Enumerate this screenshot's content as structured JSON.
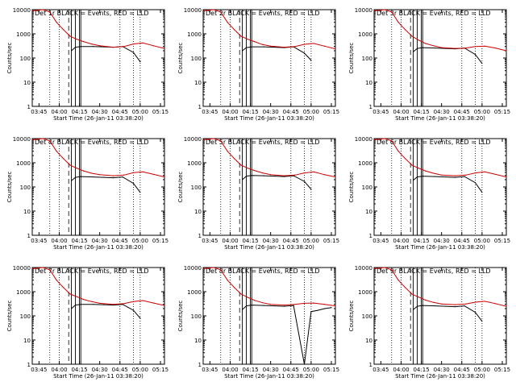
{
  "x_ticks": [
    "03:45",
    "04:00",
    "04:15",
    "04:30",
    "04:45",
    "05:00",
    "05:15"
  ],
  "y_ticks": [
    "1",
    "10",
    "100",
    "1000",
    "10000"
  ],
  "ylabel": "Counts/sec",
  "xlabel": "Start Time (26-Jan-11 03:38:20)",
  "colors": {
    "events": "#000000",
    "lld": "#cc0000",
    "axes": "#000000"
  },
  "chart_data": [
    {
      "type": "line",
      "title": "Det 1r BLACK = Events, RED = LLD",
      "xlabel": "Start Time (26-Jan-11 03:38:20)",
      "ylabel": "Counts/sec",
      "yscale": "log",
      "ylim": [
        1,
        10000
      ],
      "xlim": [
        "03:40",
        "05:18"
      ],
      "series": [
        {
          "name": "Events",
          "x": [
            "03:56",
            "04:07",
            "04:09",
            "04:12",
            "04:16",
            "04:25",
            "04:33",
            "04:40",
            "04:47",
            "04:55",
            "05:00"
          ],
          "values": [
            null,
            null,
            200,
            280,
            300,
            300,
            290,
            280,
            300,
            170,
            70
          ]
        },
        {
          "name": "LLD",
          "x": [
            "03:40",
            "03:48",
            "03:53",
            "03:58",
            "04:03",
            "04:08",
            "04:13",
            "04:18",
            "04:24",
            "04:30",
            "04:40",
            "04:48",
            "04:55",
            "05:02",
            "05:10",
            "05:18"
          ],
          "values": [
            9000,
            10000,
            8000,
            3000,
            1500,
            800,
            600,
            480,
            380,
            320,
            280,
            300,
            380,
            420,
            320,
            250
          ]
        }
      ]
    },
    {
      "type": "line",
      "title": "Det 2r BLACK = Events, RED = LLD",
      "xlabel": "Start Time (26-Jan-11 03:38:20)",
      "ylabel": "Counts/sec",
      "yscale": "log",
      "ylim": [
        1,
        10000
      ],
      "xlim": [
        "03:40",
        "05:18"
      ],
      "series": [
        {
          "name": "Events",
          "x": [
            "04:09",
            "04:12",
            "04:16",
            "04:25",
            "04:33",
            "04:40",
            "04:47",
            "04:55",
            "05:00"
          ],
          "values": [
            200,
            270,
            290,
            290,
            280,
            270,
            290,
            160,
            80
          ]
        },
        {
          "name": "LLD",
          "x": [
            "03:40",
            "03:48",
            "03:53",
            "03:58",
            "04:03",
            "04:08",
            "04:13",
            "04:18",
            "04:24",
            "04:30",
            "04:40",
            "04:48",
            "04:55",
            "05:02",
            "05:10",
            "05:18"
          ],
          "values": [
            9000,
            10000,
            8000,
            3000,
            1500,
            800,
            600,
            480,
            360,
            310,
            280,
            300,
            370,
            400,
            310,
            240
          ]
        }
      ]
    },
    {
      "type": "line",
      "title": "Det 3r BLACK = Events, RED = LLD",
      "xlabel": "Start Time (26-Jan-11 03:38:20)",
      "ylabel": "Counts/sec",
      "yscale": "log",
      "ylim": [
        1,
        10000
      ],
      "xlim": [
        "03:40",
        "05:18"
      ],
      "series": [
        {
          "name": "Events",
          "x": [
            "04:09",
            "04:12",
            "04:16",
            "04:25",
            "04:33",
            "04:40",
            "04:47",
            "04:55",
            "05:00"
          ],
          "values": [
            180,
            250,
            270,
            260,
            250,
            240,
            260,
            140,
            60
          ]
        },
        {
          "name": "LLD",
          "x": [
            "03:40",
            "03:48",
            "03:53",
            "03:58",
            "04:03",
            "04:08",
            "04:13",
            "04:18",
            "04:24",
            "04:30",
            "04:40",
            "04:48",
            "04:55",
            "05:02",
            "05:10",
            "05:18"
          ],
          "values": [
            9000,
            10000,
            8000,
            3000,
            1500,
            800,
            550,
            400,
            320,
            270,
            250,
            260,
            300,
            310,
            260,
            200
          ]
        }
      ]
    },
    {
      "type": "line",
      "title": "Det 4r BLACK = Events, RED = LLD",
      "xlabel": "Start Time (26-Jan-11 03:38:20)",
      "ylabel": "Counts/sec",
      "yscale": "log",
      "ylim": [
        1,
        10000
      ],
      "xlim": [
        "03:40",
        "05:18"
      ],
      "series": [
        {
          "name": "Events",
          "x": [
            "04:09",
            "04:12",
            "04:16",
            "04:25",
            "04:33",
            "04:40",
            "04:47",
            "04:55",
            "05:00"
          ],
          "values": [
            180,
            250,
            270,
            260,
            250,
            240,
            260,
            140,
            60
          ]
        },
        {
          "name": "LLD",
          "x": [
            "03:40",
            "03:48",
            "03:53",
            "03:58",
            "04:03",
            "04:08",
            "04:13",
            "04:18",
            "04:24",
            "04:30",
            "04:40",
            "04:48",
            "04:55",
            "05:02",
            "05:10",
            "05:18"
          ],
          "values": [
            9000,
            10000,
            8000,
            3000,
            1500,
            800,
            600,
            460,
            370,
            320,
            290,
            310,
            390,
            420,
            330,
            260
          ]
        }
      ]
    },
    {
      "type": "line",
      "title": "Det 5r BLACK = Events, RED = LLD",
      "xlabel": "Start Time (26-Jan-11 03:38:20)",
      "ylabel": "Counts/sec",
      "yscale": "log",
      "ylim": [
        1,
        10000
      ],
      "xlim": [
        "03:40",
        "05:18"
      ],
      "series": [
        {
          "name": "Events",
          "x": [
            "04:09",
            "04:12",
            "04:16",
            "04:25",
            "04:33",
            "04:40",
            "04:47",
            "04:55",
            "05:00"
          ],
          "values": [
            200,
            280,
            300,
            290,
            280,
            270,
            290,
            170,
            80
          ]
        },
        {
          "name": "LLD",
          "x": [
            "03:40",
            "03:48",
            "03:53",
            "03:58",
            "04:03",
            "04:08",
            "04:13",
            "04:18",
            "04:24",
            "04:30",
            "04:40",
            "04:48",
            "04:55",
            "05:02",
            "05:10",
            "05:18"
          ],
          "values": [
            9000,
            10000,
            8000,
            3000,
            1500,
            800,
            600,
            480,
            380,
            320,
            290,
            310,
            380,
            420,
            320,
            260
          ]
        }
      ]
    },
    {
      "type": "line",
      "title": "Det 6r BLACK = Events, RED = LLD",
      "xlabel": "Start Time (26-Jan-11 03:38:20)",
      "ylabel": "Counts/sec",
      "yscale": "log",
      "ylim": [
        1,
        10000
      ],
      "xlim": [
        "03:40",
        "05:18"
      ],
      "series": [
        {
          "name": "Events",
          "x": [
            "04:09",
            "04:12",
            "04:16",
            "04:25",
            "04:33",
            "04:40",
            "04:47",
            "04:55",
            "05:00"
          ],
          "values": [
            190,
            260,
            280,
            270,
            260,
            250,
            270,
            150,
            60
          ]
        },
        {
          "name": "LLD",
          "x": [
            "03:40",
            "03:48",
            "03:53",
            "03:58",
            "04:03",
            "04:08",
            "04:13",
            "04:18",
            "04:24",
            "04:30",
            "04:40",
            "04:48",
            "04:55",
            "05:02",
            "05:10",
            "05:18"
          ],
          "values": [
            9000,
            10000,
            8000,
            3000,
            1500,
            800,
            600,
            460,
            370,
            310,
            290,
            310,
            380,
            420,
            330,
            260
          ]
        }
      ]
    },
    {
      "type": "line",
      "title": "Det 7r BLACK = Events, RED = LLD",
      "xlabel": "Start Time (26-Jan-11 03:38:20)",
      "ylabel": "Counts/sec",
      "yscale": "log",
      "ylim": [
        1,
        10000
      ],
      "xlim": [
        "03:40",
        "05:18"
      ],
      "series": [
        {
          "name": "Events",
          "x": [
            "04:09",
            "04:12",
            "04:16",
            "04:25",
            "04:33",
            "04:40",
            "04:47",
            "04:55",
            "05:00"
          ],
          "values": [
            200,
            280,
            300,
            300,
            290,
            280,
            300,
            170,
            80
          ]
        },
        {
          "name": "LLD",
          "x": [
            "03:40",
            "03:48",
            "03:53",
            "03:58",
            "04:03",
            "04:08",
            "04:13",
            "04:18",
            "04:24",
            "04:30",
            "04:40",
            "04:48",
            "04:55",
            "05:02",
            "05:10",
            "05:18"
          ],
          "values": [
            9000,
            10000,
            8000,
            3000,
            1500,
            800,
            620,
            480,
            390,
            330,
            300,
            320,
            390,
            430,
            340,
            270
          ]
        }
      ]
    },
    {
      "type": "line",
      "title": "Det 8r BLACK = Events, RED = LLD",
      "xlabel": "Start Time (26-Jan-11 03:38:20)",
      "ylabel": "Counts/sec",
      "yscale": "log",
      "ylim": [
        1,
        10000
      ],
      "xlim": [
        "03:40",
        "05:18"
      ],
      "series": [
        {
          "name": "Events",
          "x": [
            "04:09",
            "04:12",
            "04:16",
            "04:25",
            "04:33",
            "04:40",
            "04:47",
            "04:55",
            "05:00",
            "05:05",
            "05:10",
            "05:15"
          ],
          "values": [
            180,
            260,
            280,
            270,
            260,
            250,
            270,
            1,
            150,
            170,
            200,
            220
          ]
        },
        {
          "name": "LLD",
          "x": [
            "03:40",
            "03:48",
            "03:53",
            "03:58",
            "04:03",
            "04:08",
            "04:13",
            "04:18",
            "04:24",
            "04:30",
            "04:40",
            "04:48",
            "04:55",
            "05:02",
            "05:10",
            "05:18"
          ],
          "values": [
            9000,
            10000,
            8000,
            3000,
            1500,
            800,
            580,
            440,
            350,
            300,
            280,
            300,
            330,
            340,
            300,
            260
          ]
        }
      ]
    },
    {
      "type": "line",
      "title": "Det 9r BLACK = Events, RED = LLD",
      "xlabel": "Start Time (26-Jan-11 03:38:20)",
      "ylabel": "Counts/sec",
      "yscale": "log",
      "ylim": [
        1,
        10000
      ],
      "xlim": [
        "03:40",
        "05:18"
      ],
      "series": [
        {
          "name": "Events",
          "x": [
            "04:09",
            "04:12",
            "04:16",
            "04:25",
            "04:33",
            "04:40",
            "04:47",
            "04:55",
            "05:00"
          ],
          "values": [
            180,
            250,
            270,
            260,
            250,
            240,
            260,
            140,
            60
          ]
        },
        {
          "name": "LLD",
          "x": [
            "03:40",
            "03:48",
            "03:53",
            "03:58",
            "04:03",
            "04:08",
            "04:13",
            "04:18",
            "04:24",
            "04:30",
            "04:40",
            "04:48",
            "04:55",
            "05:02",
            "05:10",
            "05:18"
          ],
          "values": [
            9000,
            10000,
            8000,
            3000,
            1500,
            800,
            600,
            450,
            360,
            310,
            290,
            310,
            370,
            400,
            320,
            250
          ]
        }
      ]
    }
  ]
}
